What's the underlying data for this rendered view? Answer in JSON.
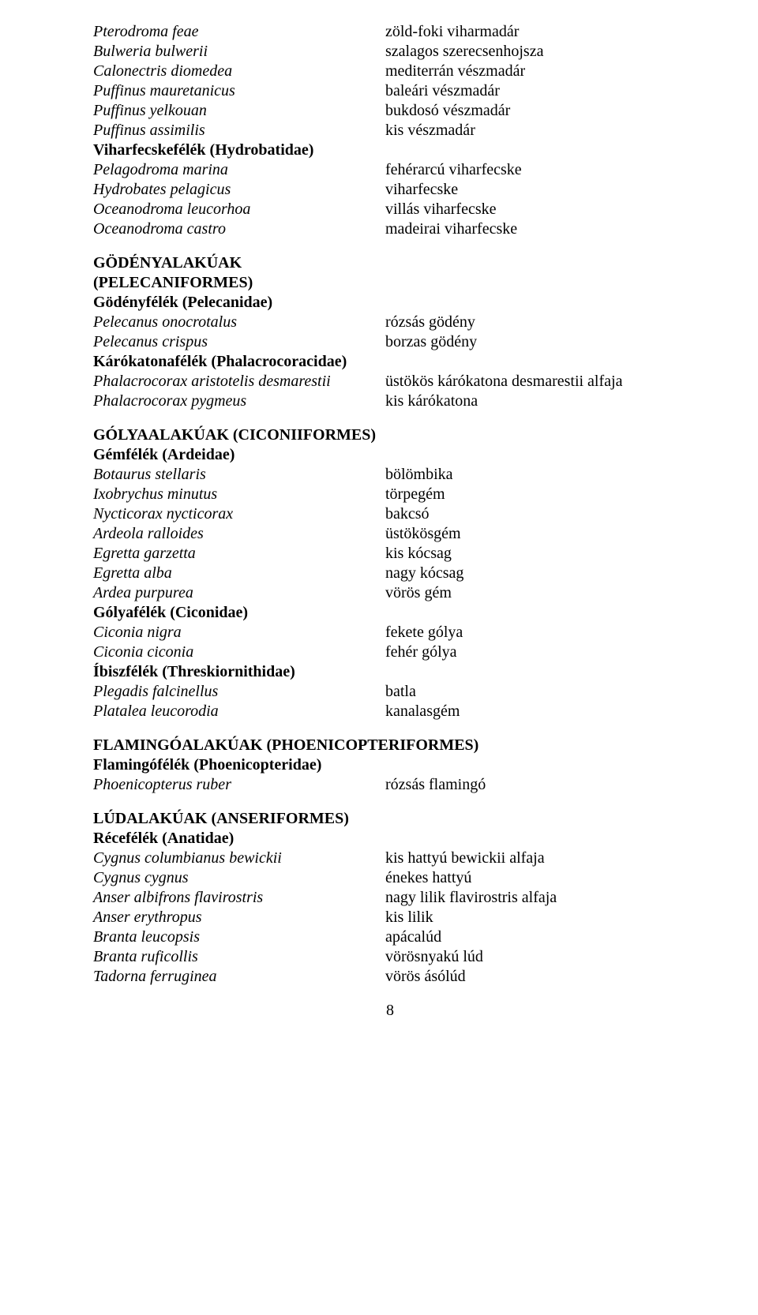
{
  "blocks": [
    {
      "entries": [
        {
          "latin": "Pterodroma feae",
          "hun": "zöld-foki viharmadár",
          "leftItalic": true
        },
        {
          "latin": "Bulweria bulwerii",
          "hun": "szalagos szerecsenhojsza",
          "leftItalic": true
        },
        {
          "latin": "Calonectris diomedea",
          "hun": "mediterrán vészmadár",
          "leftItalic": true
        },
        {
          "latin": "Puffinus mauretanicus",
          "hun": "baleári vészmadár",
          "leftItalic": true
        },
        {
          "latin": "Puffinus yelkouan",
          "hun": "bukdosó vészmadár",
          "leftItalic": true
        },
        {
          "latin": "Puffinus assimilis",
          "hun": "kis vészmadár",
          "leftItalic": true
        },
        {
          "latin": "Viharfecskefélék (Hydrobatidae)",
          "hun": "",
          "leftBold": true
        },
        {
          "latin": "Pelagodroma marina",
          "hun": "fehérarcú viharfecske",
          "leftItalic": true
        },
        {
          "latin": "Hydrobates pelagicus",
          "hun": "viharfecske",
          "leftItalic": true
        },
        {
          "latin": "Oceanodroma leucorhoa",
          "hun": "villás viharfecske",
          "leftItalic": true
        },
        {
          "latin": "Oceanodroma castro",
          "hun": "madeirai viharfecske",
          "leftItalic": true
        }
      ]
    },
    {
      "gapBefore": true,
      "heading": "GÖDÉNYALAKÚAK",
      "heading2": "(PELECANIFORMES)",
      "entries": [
        {
          "latin": "Gödényfélék (Pelecanidae)",
          "hun": "",
          "leftBold": true
        },
        {
          "latin": "Pelecanus onocrotalus",
          "hun": " rózsás gödény",
          "leftItalic": true
        },
        {
          "latin": "Pelecanus crispus",
          "hun": "borzas gödény",
          "leftItalic": true
        },
        {
          "latin": "Kárókatonafélék (Phalacrocoracidae)",
          "hun": "",
          "leftBold": true
        },
        {
          "latin": "Phalacrocorax aristotelis desmarestii",
          "hun": "üstökös kárókatona desmarestii alfaja",
          "leftItalic": true
        },
        {
          "latin": "Phalacrocorax pygmeus",
          "hun": "kis kárókatona",
          "leftItalic": true
        }
      ]
    },
    {
      "gapBefore": true,
      "heading": "GÓLYAALAKÚAK (CICONIIFORMES)",
      "entries": [
        {
          "latin": "Gémfélék (Ardeidae)",
          "hun": "",
          "leftBold": true
        },
        {
          "latin": "Botaurus stellaris",
          "hun": " bölömbika",
          "leftItalic": true
        },
        {
          "latin": "Ixobrychus minutus",
          "hun": " törpegém",
          "leftItalic": true
        },
        {
          "latin": "Nycticorax nycticorax",
          "hun": " bakcsó",
          "leftItalic": true
        },
        {
          "latin": "Ardeola ralloides",
          "hun": "üstökösgém",
          "leftItalic": true
        },
        {
          "latin": "Egretta garzetta",
          "hun": "kis kócsag",
          "leftItalic": true
        },
        {
          "latin": "Egretta alba",
          "hun": "nagy kócsag",
          "leftItalic": true
        },
        {
          "latin": "Ardea purpurea",
          "hun": "vörös gém",
          "leftItalic": true
        },
        {
          "latin": "Gólyafélék (Ciconidae)",
          "hun": "",
          "leftBold": true
        },
        {
          "latin": "Ciconia nigra",
          "hun": "fekete gólya",
          "leftItalic": true
        },
        {
          "latin": "Ciconia ciconia",
          "hun": "fehér gólya",
          "leftItalic": true
        },
        {
          "latin": "Íbiszfélék (Threskiornithidae)",
          "hun": "",
          "leftBold": true
        },
        {
          "latin": "Plegadis falcinellus",
          "hun": " batla",
          "leftItalic": true
        },
        {
          "latin": "Platalea leucorodia",
          "hun": "kanalasgém",
          "leftItalic": true
        }
      ]
    },
    {
      "gapBefore": true,
      "heading": "FLAMINGÓALAKÚAK (PHOENICOPTERIFORMES)",
      "entries": [
        {
          "latin": "Flamingófélék (Phoenicopteridae)",
          "hun": "",
          "leftBold": true
        },
        {
          "latin": "Phoenicopterus ruber",
          "hun": " rózsás flamingó",
          "leftItalic": true
        }
      ]
    },
    {
      "gapBefore": true,
      "heading": "LÚDALAKÚAK (ANSERIFORMES)",
      "entries": [
        {
          "latin": "Récefélék (Anatidae)",
          "hun": "",
          "leftBold": true
        },
        {
          "latin": "Cygnus columbianus bewickii",
          "hun": " kis hattyú bewickii alfaja",
          "leftItalic": true
        },
        {
          "latin": "Cygnus cygnus",
          "hun": "énekes hattyú",
          "leftItalic": true
        },
        {
          "latin": "Anser albifrons flavirostris",
          "hun": "nagy lilik flavirostris alfaja",
          "leftItalic": true
        },
        {
          "latin": "Anser erythropus",
          "hun": " kis lilik",
          "leftItalic": true
        },
        {
          "latin": "Branta leucopsis",
          "hun": "apácalúd",
          "leftItalic": true
        },
        {
          "latin": "Branta ruficollis",
          "hun": "vörösnyakú lúd",
          "leftItalic": true
        },
        {
          "latin": "Tadorna ferruginea",
          "hun": "vörös ásólúd",
          "leftItalic": true
        }
      ]
    }
  ],
  "pageNumber": "8"
}
